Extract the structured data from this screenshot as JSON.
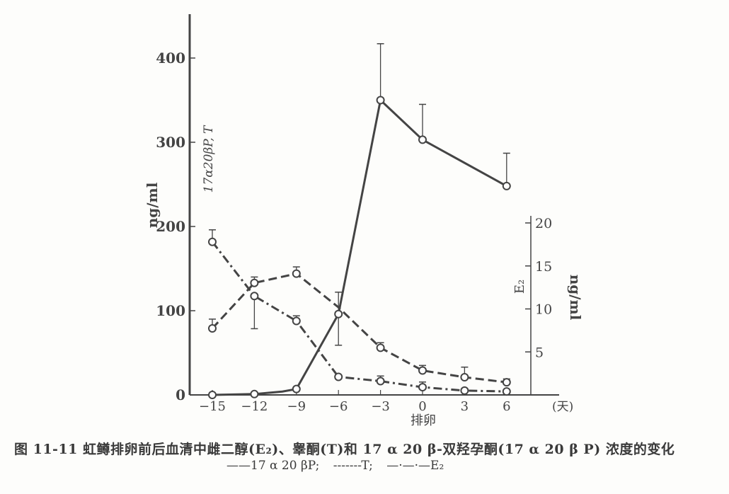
{
  "chart_data": {
    "type": "line",
    "caption": "图 11-11   虹鳟排卵前后血清中雌二醇(E₂)、睾酮(T)和 17 α 20 β-双羟孕酮(17 α 20 β P) 浓度的变化",
    "xlabel": "排卵",
    "x_unit": "(天)",
    "x_ticks": [
      "−15",
      "−12",
      "−9",
      "−6",
      "−3",
      "0",
      "3",
      "6"
    ],
    "x": [
      -15,
      -12,
      -9,
      -6,
      -3,
      0,
      3,
      6
    ],
    "y_left": {
      "label_units": "ng/ml",
      "label_series": "17α20βP, T",
      "range": [
        0,
        450
      ],
      "ticks": [
        "0",
        "100",
        "200",
        "300",
        "400"
      ]
    },
    "y_right": {
      "label_units": "ng/ml",
      "label_series": "E₂",
      "range": [
        0,
        20
      ],
      "ticks": [
        "5",
        "10",
        "15",
        "20"
      ]
    },
    "grid": false,
    "legend": {
      "placement": "bottom",
      "entries": [
        "——17 α 20 βP;",
        "-------T;",
        "—·—·—E₂"
      ]
    },
    "series": [
      {
        "name": "17α20βP",
        "axis": "left",
        "style": "solid",
        "x": [
          -15,
          -12,
          -10,
          -9,
          -6,
          -3,
          0,
          6
        ],
        "y": [
          0,
          1,
          4,
          7,
          96,
          350,
          303,
          248
        ],
        "error_bars": [
          {
            "x": -6,
            "low": 59,
            "high": 122
          },
          {
            "x": -3,
            "high": 417
          },
          {
            "x": 0,
            "high": 345
          },
          {
            "x": 6,
            "high": 287
          }
        ]
      },
      {
        "name": "T",
        "axis": "left",
        "style": "dashed",
        "x": [
          -15,
          -12,
          -9,
          -6,
          -3,
          0,
          3,
          6
        ],
        "y": [
          79,
          133,
          144,
          104,
          56,
          29,
          21,
          15
        ],
        "error_bars": [
          {
            "x": -15,
            "high": 90
          },
          {
            "x": -12,
            "high": 140
          },
          {
            "x": -9,
            "high": 152
          },
          {
            "x": -3,
            "high": 62
          },
          {
            "x": 0,
            "high": 35
          },
          {
            "x": 3,
            "high": 33
          },
          {
            "x": 6,
            "high": 19
          }
        ]
      },
      {
        "name": "E₂",
        "axis": "right",
        "style": "dashdot",
        "x": [
          -15,
          -12,
          -9,
          -6,
          -3,
          0,
          3,
          6
        ],
        "y": [
          17.8,
          11.5,
          8.6,
          2.1,
          1.6,
          0.9,
          0.5,
          0.4
        ],
        "error_bars": [
          {
            "x": -15,
            "high": 19.2
          },
          {
            "x": -12,
            "low": 7.7
          },
          {
            "x": -9,
            "high": 9.2
          },
          {
            "x": -3,
            "high": 2.2
          },
          {
            "x": 0,
            "high": 1.5
          }
        ]
      }
    ]
  },
  "colors": {
    "ink": "#444444",
    "paper": "#fdfdfb"
  }
}
